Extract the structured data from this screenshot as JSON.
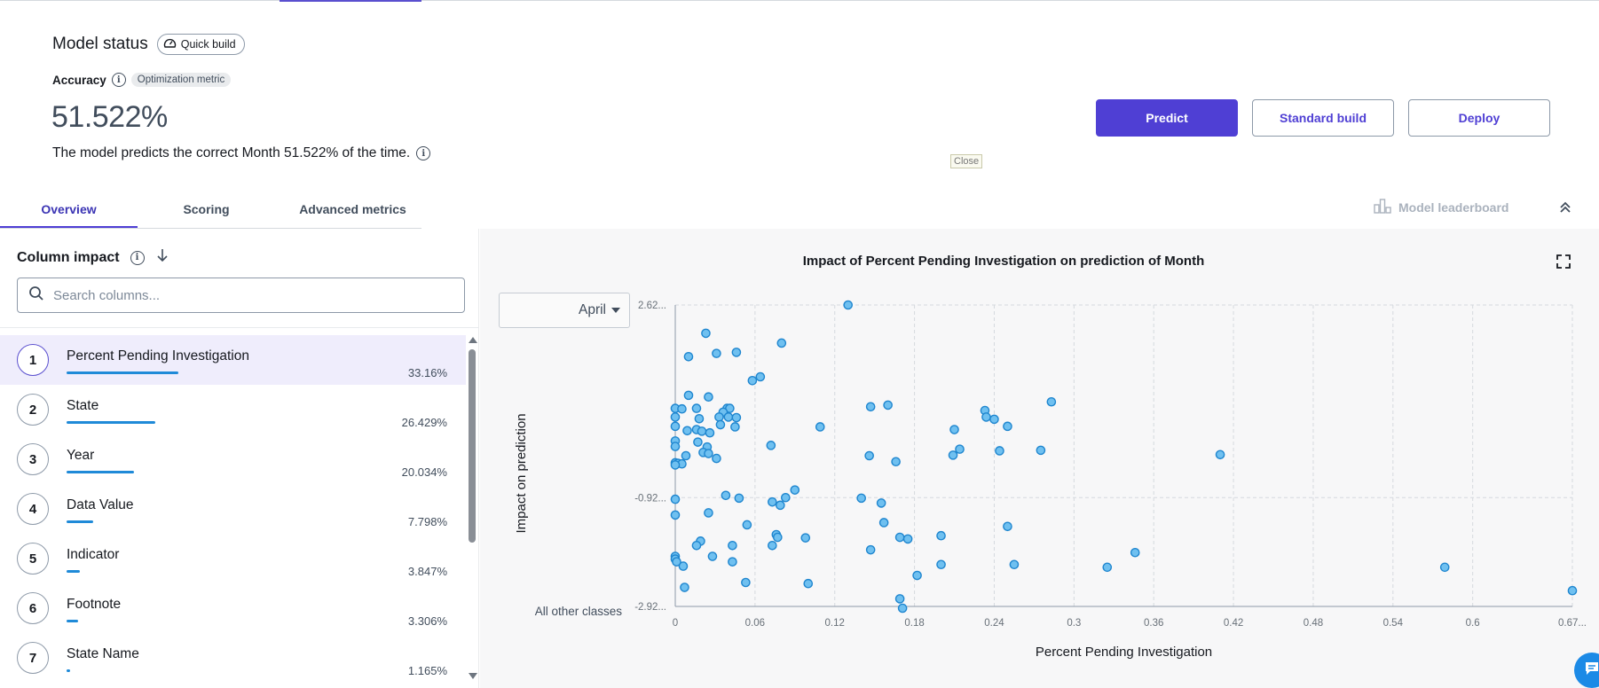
{
  "header": {
    "title": "Model status",
    "quick_build": "Quick build",
    "accuracy_label": "Accuracy",
    "optimization_badge": "Optimization metric",
    "accuracy_value": "51.522%",
    "description": "The model predicts the correct Month 51.522% of the time."
  },
  "actions": {
    "predict": "Predict",
    "standard_build": "Standard build",
    "deploy": "Deploy",
    "close_tooltip": "Close"
  },
  "tabs": [
    {
      "label": "Overview",
      "active": true
    },
    {
      "label": "Scoring",
      "active": false
    },
    {
      "label": "Advanced metrics",
      "active": false
    }
  ],
  "leaderboard_label": "Model leaderboard",
  "column_impact": {
    "title": "Column impact",
    "search_placeholder": "Search columns...",
    "items": [
      {
        "rank": "1",
        "name": "Percent Pending Investigation",
        "percent": "33.16%",
        "share": 0.3316
      },
      {
        "rank": "2",
        "name": "State",
        "percent": "26.429%",
        "share": 0.26429
      },
      {
        "rank": "3",
        "name": "Year",
        "percent": "20.034%",
        "share": 0.20034
      },
      {
        "rank": "4",
        "name": "Data Value",
        "percent": "7.798%",
        "share": 0.07798
      },
      {
        "rank": "5",
        "name": "Indicator",
        "percent": "3.847%",
        "share": 0.03847
      },
      {
        "rank": "6",
        "name": "Footnote",
        "percent": "3.306%",
        "share": 0.03306
      },
      {
        "rank": "7",
        "name": "State Name",
        "percent": "1.165%",
        "share": 0.01165
      }
    ]
  },
  "chart_panel": {
    "class_selector": "April"
  },
  "colors": {
    "primary": "#4f3fd4",
    "bar": "#1f8ad8",
    "point_fill": "#6fc0f0",
    "point_stroke": "#1f86cf"
  },
  "chart_data": {
    "type": "scatter",
    "title": "Impact of Percent Pending Investigation on prediction of Month",
    "xlabel": "Percent Pending Investigation",
    "ylabel": "Impact on prediction",
    "xlim": [
      0,
      0.675
    ],
    "ylim": [
      -2.92,
      2.62
    ],
    "x_ticks": [
      "0",
      "0.06",
      "0.12",
      "0.18",
      "0.24",
      "0.3",
      "0.36",
      "0.42",
      "0.48",
      "0.54",
      "0.6",
      "0.67..."
    ],
    "x_tick_values": [
      0,
      0.06,
      0.12,
      0.18,
      0.24,
      0.3,
      0.36,
      0.42,
      0.48,
      0.54,
      0.6,
      0.675
    ],
    "y_ticks": [
      "2.62...",
      "-0.92...",
      "-2.92..."
    ],
    "y_tick_values": [
      2.62,
      -0.92,
      -2.92
    ],
    "y_extra_label": "All other classes",
    "grid": true,
    "points": [
      [
        0.13,
        2.62
      ],
      [
        0.023,
        2.1
      ],
      [
        0.08,
        1.92
      ],
      [
        0.01,
        1.67
      ],
      [
        0.031,
        1.73
      ],
      [
        0.046,
        1.75
      ],
      [
        0.064,
        1.3
      ],
      [
        0.058,
        1.23
      ],
      [
        0.01,
        0.96
      ],
      [
        0.025,
        0.93
      ],
      [
        0.0,
        0.72
      ],
      [
        0.005,
        0.71
      ],
      [
        0.016,
        0.72
      ],
      [
        0.039,
        0.72
      ],
      [
        0.041,
        0.72
      ],
      [
        0.036,
        0.65
      ],
      [
        0.033,
        0.56
      ],
      [
        0.04,
        0.56
      ],
      [
        0.046,
        0.55
      ],
      [
        0.0,
        0.56
      ],
      [
        0.018,
        0.53
      ],
      [
        0.0,
        0.39
      ],
      [
        0.034,
        0.42
      ],
      [
        0.045,
        0.38
      ],
      [
        0.109,
        0.38
      ],
      [
        0.009,
        0.31
      ],
      [
        0.016,
        0.33
      ],
      [
        0.02,
        0.3
      ],
      [
        0.026,
        0.27
      ],
      [
        0.147,
        0.75
      ],
      [
        0.16,
        0.78
      ],
      [
        0.233,
        0.68
      ],
      [
        0.234,
        0.56
      ],
      [
        0.24,
        0.52
      ],
      [
        0.25,
        0.39
      ],
      [
        0.21,
        0.33
      ],
      [
        0.283,
        0.84
      ],
      [
        0.0,
        0.12
      ],
      [
        0.017,
        0.1
      ],
      [
        0.0,
        0.02
      ],
      [
        0.024,
        0.01
      ],
      [
        0.072,
        0.04
      ],
      [
        0.021,
        -0.09
      ],
      [
        0.025,
        -0.11
      ],
      [
        0.008,
        -0.15
      ],
      [
        0.031,
        -0.2
      ],
      [
        0.0,
        -0.28
      ],
      [
        0.002,
        -0.29
      ],
      [
        0.005,
        -0.3
      ],
      [
        0.0,
        -0.32
      ],
      [
        0.146,
        -0.15
      ],
      [
        0.166,
        -0.26
      ],
      [
        0.209,
        -0.14
      ],
      [
        0.214,
        -0.03
      ],
      [
        0.244,
        -0.06
      ],
      [
        0.275,
        -0.05
      ],
      [
        0.41,
        -0.13
      ],
      [
        0.09,
        -0.78
      ],
      [
        0.083,
        -0.92
      ],
      [
        0.038,
        -0.88
      ],
      [
        0.048,
        -0.93
      ],
      [
        0.073,
        -1.0
      ],
      [
        0.079,
        -1.06
      ],
      [
        0.14,
        -0.93
      ],
      [
        0.155,
        -1.02
      ],
      [
        0.0,
        -0.95
      ],
      [
        0.0,
        -1.24
      ],
      [
        0.025,
        -1.2
      ],
      [
        0.054,
        -1.42
      ],
      [
        0.157,
        -1.38
      ],
      [
        0.25,
        -1.45
      ],
      [
        0.076,
        -1.6
      ],
      [
        0.077,
        -1.65
      ],
      [
        0.098,
        -1.66
      ],
      [
        0.169,
        -1.65
      ],
      [
        0.175,
        -1.68
      ],
      [
        0.2,
        -1.62
      ],
      [
        0.019,
        -1.72
      ],
      [
        0.016,
        -1.8
      ],
      [
        0.043,
        -1.8
      ],
      [
        0.073,
        -1.8
      ],
      [
        0.147,
        -1.88
      ],
      [
        0.0,
        -2.0
      ],
      [
        0.0,
        -2.05
      ],
      [
        0.028,
        -2.0
      ],
      [
        0.001,
        -2.1
      ],
      [
        0.006,
        -2.18
      ],
      [
        0.043,
        -2.1
      ],
      [
        0.2,
        -2.15
      ],
      [
        0.255,
        -2.15
      ],
      [
        0.325,
        -2.2
      ],
      [
        0.346,
        -1.93
      ],
      [
        0.579,
        -2.2
      ],
      [
        0.053,
        -2.48
      ],
      [
        0.1,
        -2.5
      ],
      [
        0.182,
        -2.35
      ],
      [
        0.007,
        -2.57
      ],
      [
        0.169,
        -2.78
      ],
      [
        0.171,
        -3.02
      ],
      [
        0.675,
        -2.63
      ]
    ]
  }
}
